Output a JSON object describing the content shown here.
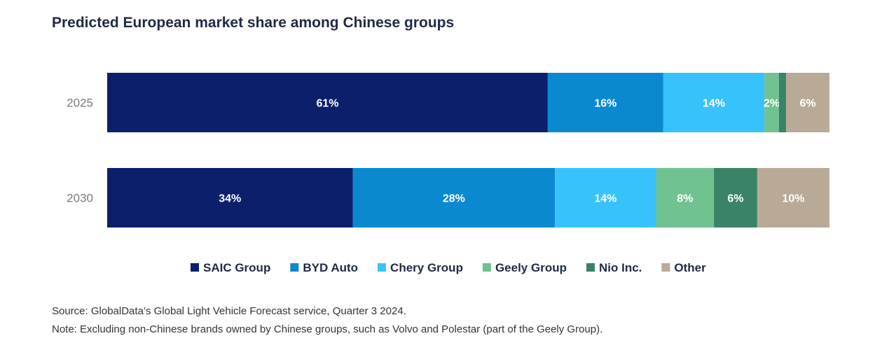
{
  "title": "Predicted European market share among Chinese groups",
  "chart_data": {
    "type": "bar",
    "orientation": "horizontal",
    "stacked": "percent",
    "categories": [
      "2025",
      "2030"
    ],
    "series": [
      {
        "name": "SAIC Group",
        "color": "#0b1f6b",
        "values": [
          61,
          34
        ],
        "labels": [
          "61%",
          "34%"
        ]
      },
      {
        "name": "BYD Auto",
        "color": "#0a89d0",
        "values": [
          16,
          28
        ],
        "labels": [
          "16%",
          "28%"
        ]
      },
      {
        "name": "Chery Group",
        "color": "#38c2fb",
        "values": [
          14,
          14
        ],
        "labels": [
          "14%",
          "14%"
        ]
      },
      {
        "name": "Geely Group",
        "color": "#70c291",
        "values": [
          2,
          8
        ],
        "labels": [
          "2%",
          "8%"
        ]
      },
      {
        "name": "Nio Inc.",
        "color": "#3b8367",
        "values": [
          1,
          6
        ],
        "labels": [
          "",
          "6%"
        ]
      },
      {
        "name": "Other",
        "color": "#b8aa96",
        "values": [
          6,
          10
        ],
        "labels": [
          "6%",
          "10%"
        ]
      }
    ],
    "grid": false,
    "legend_position": "bottom"
  },
  "source": "Source: GlobalData’s Global Light Vehicle Forecast service, Quarter 3 2024.",
  "note": "Note: Excluding non-Chinese brands owned by Chinese groups, such as Volvo and Polestar (part of the Geely Group)."
}
